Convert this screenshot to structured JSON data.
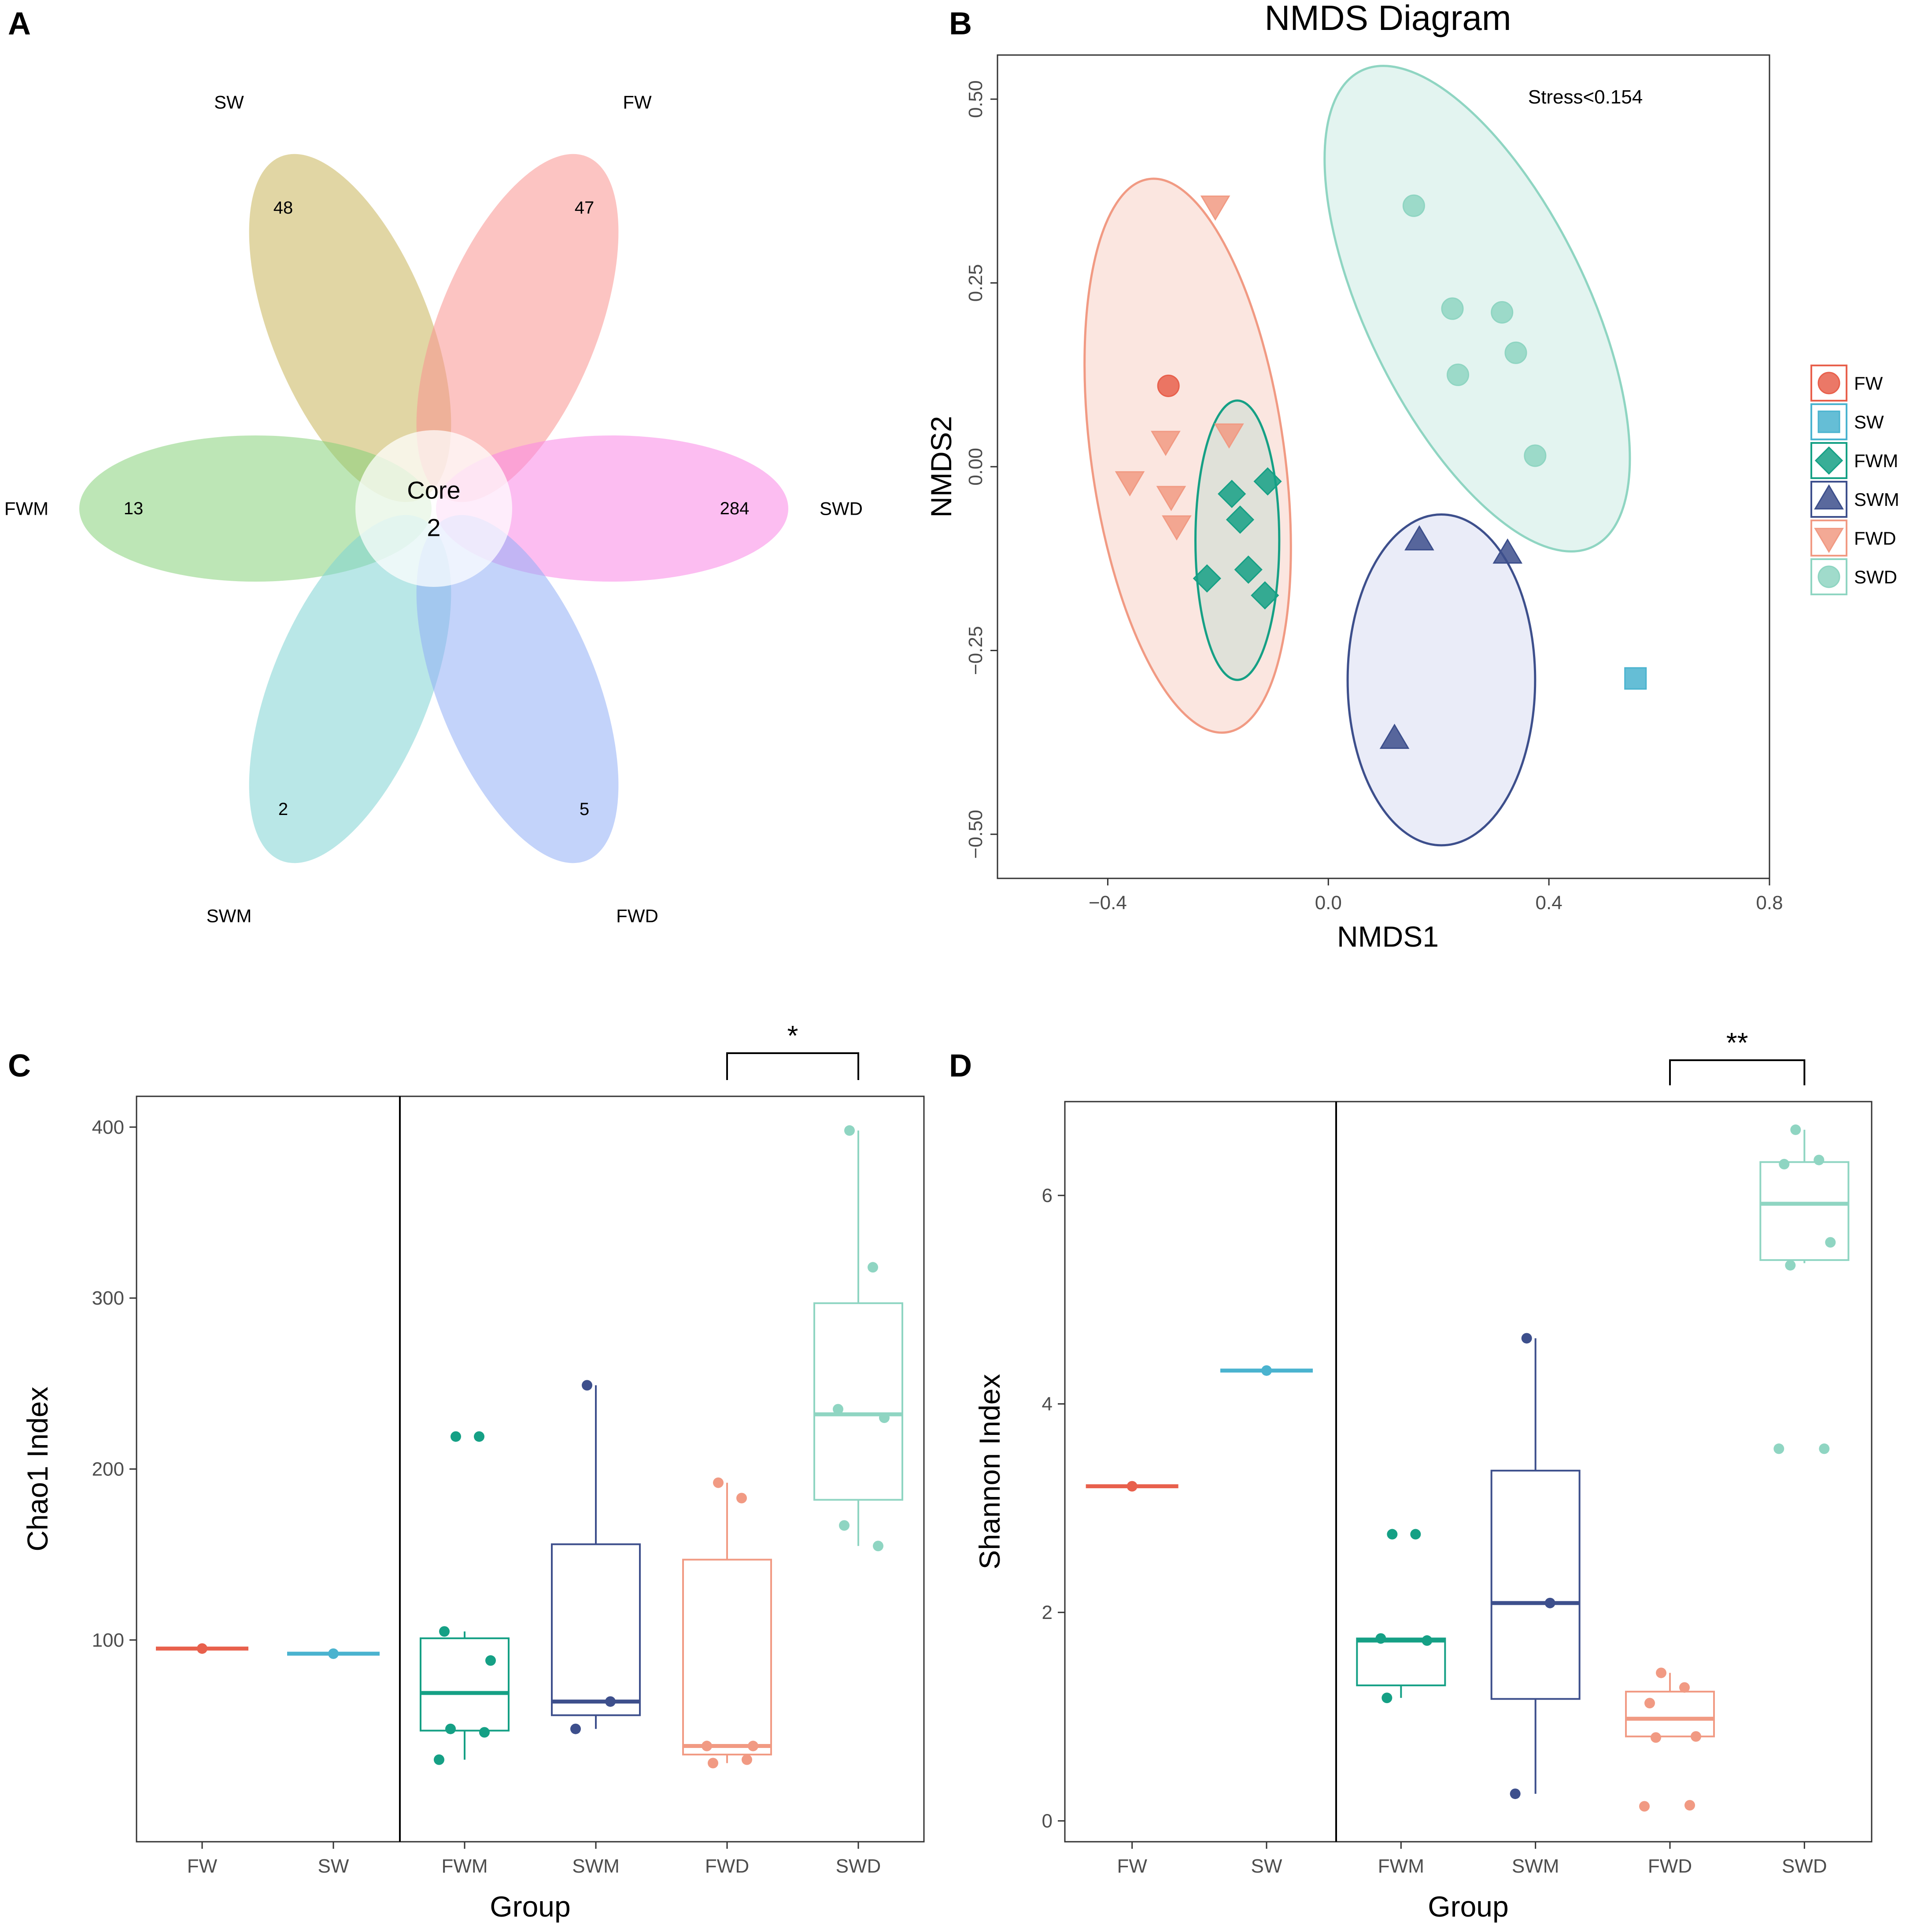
{
  "colors": {
    "FW": "#e8604c",
    "SW": "#4ab3cf",
    "FWM": "#15a085",
    "SWM": "#3d4f8c",
    "FWD": "#f19a83",
    "SWD": "#8fd5c2"
  },
  "chart_data": [
    {
      "panel": "A",
      "type": "venn-flower",
      "core_label": "Core",
      "core_value": "2",
      "petals": [
        {
          "name": "SW",
          "value": "48",
          "color": "#c9b45a"
        },
        {
          "name": "FW",
          "value": "47",
          "color": "#f9938f"
        },
        {
          "name": "FWM",
          "value": "13",
          "color": "#86d17a"
        },
        {
          "name": "SWD",
          "value": "284",
          "color": "#f986e6"
        },
        {
          "name": "SWM",
          "value": "2",
          "color": "#7fd4d4"
        },
        {
          "name": "FWD",
          "value": "5",
          "color": "#92aef5"
        }
      ]
    },
    {
      "panel": "B",
      "type": "scatter",
      "title": "NMDS Diagram",
      "xlabel": "NMDS1",
      "ylabel": "NMDS2",
      "xlim": [
        -0.6,
        0.8
      ],
      "ylim": [
        -0.56,
        0.56
      ],
      "xticks": [
        -0.4,
        0.0,
        0.4,
        0.8
      ],
      "xtick_labels": [
        "−0.4",
        "0.0",
        "0.4",
        "0.8"
      ],
      "yticks": [
        -0.5,
        -0.25,
        0.0,
        0.25,
        0.5
      ],
      "ytick_labels": [
        "−0.50",
        "−0.25",
        "0.00",
        "0.25",
        "0.50"
      ],
      "annotation": "Stress<0.154",
      "legend": [
        "FW",
        "SW",
        "FWM",
        "SWM",
        "FWD",
        "SWD"
      ],
      "series": [
        {
          "name": "FW",
          "shape": "circle",
          "points": [
            [
              -0.29,
              0.11
            ]
          ]
        },
        {
          "name": "SW",
          "shape": "square",
          "points": [
            [
              0.557,
              -0.288
            ]
          ]
        },
        {
          "name": "FWM",
          "shape": "diamond",
          "points": [
            [
              -0.175,
              -0.037
            ],
            [
              -0.16,
              -0.072
            ],
            [
              -0.11,
              -0.02
            ],
            [
              -0.22,
              -0.152
            ],
            [
              -0.145,
              -0.14
            ],
            [
              -0.115,
              -0.175
            ]
          ]
        },
        {
          "name": "SWM",
          "shape": "triangle-up",
          "points": [
            [
              0.165,
              -0.1
            ],
            [
              0.325,
              -0.118
            ],
            [
              0.12,
              -0.37
            ]
          ]
        },
        {
          "name": "FWD",
          "shape": "triangle-down",
          "points": [
            [
              -0.205,
              0.355
            ],
            [
              -0.295,
              0.035
            ],
            [
              -0.36,
              -0.02
            ],
            [
              -0.285,
              -0.04
            ],
            [
              -0.275,
              -0.08
            ],
            [
              -0.18,
              0.045
            ]
          ]
        },
        {
          "name": "SWD",
          "shape": "circle",
          "points": [
            [
              0.155,
              0.355
            ],
            [
              0.225,
              0.215
            ],
            [
              0.315,
              0.21
            ],
            [
              0.235,
              0.125
            ],
            [
              0.34,
              0.155
            ],
            [
              0.375,
              0.015
            ]
          ]
        }
      ],
      "ellipses": [
        {
          "name": "FWD",
          "cx": -0.255,
          "cy": 0.015,
          "comment": "confidence ellipse"
        },
        {
          "name": "FWM",
          "cx": -0.165,
          "cy": -0.1
        },
        {
          "name": "SWD",
          "cx": 0.27,
          "cy": 0.215
        },
        {
          "name": "SWM",
          "cx": 0.205,
          "cy": -0.29
        }
      ]
    },
    {
      "panel": "C",
      "type": "box",
      "xlabel": "Group",
      "ylabel": "Chao1  Index",
      "categories": [
        "FW",
        "SW",
        "FWM",
        "SWM",
        "FWD",
        "SWD"
      ],
      "ylim": [
        -18,
        418
      ],
      "yticks": [
        100,
        200,
        300,
        400
      ],
      "boxes": [
        {
          "name": "FW",
          "q1": 95,
          "median": 95,
          "q3": 95,
          "wlo": 95,
          "whi": 95,
          "points": [
            95
          ]
        },
        {
          "name": "SW",
          "q1": 92,
          "median": 92,
          "q3": 92,
          "wlo": 92,
          "whi": 92,
          "points": [
            92
          ]
        },
        {
          "name": "FWM",
          "q1": 47,
          "median": 69,
          "q3": 101,
          "wlo": 30,
          "whi": 105,
          "points": [
            219,
            219,
            105,
            88,
            48,
            46,
            30
          ]
        },
        {
          "name": "SWM",
          "q1": 56,
          "median": 64,
          "q3": 156,
          "wlo": 48,
          "whi": 249,
          "points": [
            249,
            64,
            48
          ]
        },
        {
          "name": "FWD",
          "q1": 33,
          "median": 38,
          "q3": 147,
          "wlo": 28,
          "whi": 192,
          "points": [
            192,
            183,
            38,
            38,
            28,
            30
          ]
        },
        {
          "name": "SWD",
          "q1": 182,
          "median": 232,
          "q3": 297,
          "wlo": 155,
          "whi": 398,
          "points": [
            398,
            318,
            235,
            230,
            167,
            155
          ]
        }
      ],
      "significance": {
        "from": "FWD",
        "to": "SWD",
        "label": "*"
      }
    },
    {
      "panel": "D",
      "type": "box",
      "xlabel": "Group",
      "ylabel": "Shannon  Index",
      "categories": [
        "FW",
        "SW",
        "FWM",
        "SWM",
        "FWD",
        "SWD"
      ],
      "ylim": [
        -0.2,
        6.9
      ],
      "yticks": [
        0,
        2,
        4,
        6
      ],
      "boxes": [
        {
          "name": "FW",
          "q1": 3.21,
          "median": 3.21,
          "q3": 3.21,
          "wlo": 3.21,
          "whi": 3.21,
          "points": [
            3.21
          ]
        },
        {
          "name": "SW",
          "q1": 4.32,
          "median": 4.32,
          "q3": 4.32,
          "wlo": 4.32,
          "whi": 4.32,
          "points": [
            4.32
          ]
        },
        {
          "name": "FWM",
          "q1": 1.3,
          "median": 1.73,
          "q3": 1.75,
          "wlo": 1.18,
          "whi": 1.75,
          "points": [
            2.75,
            2.75,
            1.75,
            1.73,
            1.18
          ]
        },
        {
          "name": "SWM",
          "q1": 1.17,
          "median": 2.09,
          "q3": 3.36,
          "wlo": 0.26,
          "whi": 4.63,
          "points": [
            4.63,
            2.09,
            0.26
          ]
        },
        {
          "name": "FWD",
          "q1": 0.81,
          "median": 0.98,
          "q3": 1.24,
          "wlo": 0.81,
          "whi": 1.42,
          "points": [
            1.42,
            1.28,
            1.13,
            0.81,
            0.8,
            0.15,
            0.14
          ]
        },
        {
          "name": "SWD",
          "q1": 5.38,
          "median": 5.92,
          "q3": 6.32,
          "wlo": 5.35,
          "whi": 6.63,
          "points": [
            6.63,
            6.34,
            6.3,
            5.55,
            5.33,
            3.57,
            3.57
          ]
        }
      ],
      "significance": {
        "from": "FWD",
        "to": "SWD",
        "label": "**"
      }
    }
  ],
  "panel_labels": {
    "A": "A",
    "B": "B",
    "C": "C",
    "D": "D"
  }
}
